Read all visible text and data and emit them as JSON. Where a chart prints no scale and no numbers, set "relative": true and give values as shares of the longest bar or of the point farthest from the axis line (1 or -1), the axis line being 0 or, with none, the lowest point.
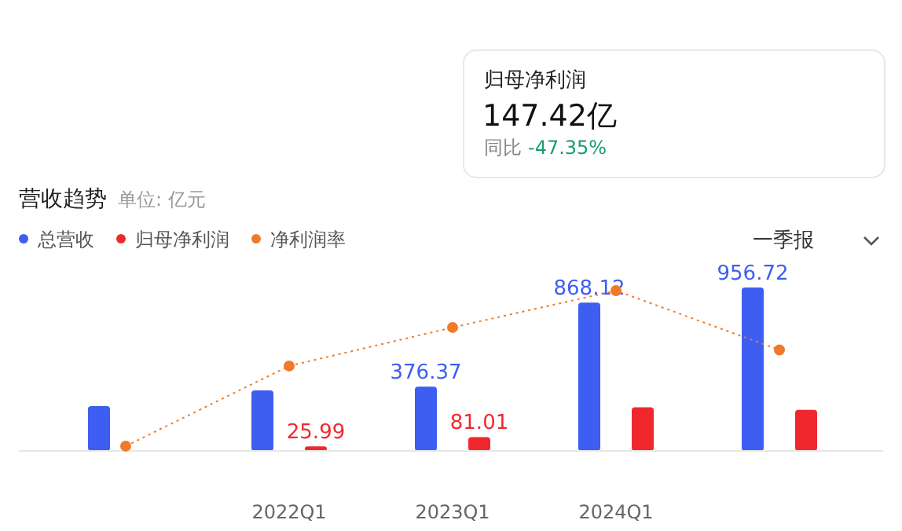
{
  "chart_data": [
    {
      "type": "other",
      "title": "归母净利润",
      "annotations": [
        "147.42亿",
        "同比",
        "-47.35%"
      ]
    },
    {
      "type": "bar",
      "title": "营收趋势",
      "subtitle": "单位: 亿元",
      "annotations": [
        "一季报"
      ],
      "categories": [
        null,
        "2022Q1",
        "2023Q1",
        "2024Q1",
        null
      ],
      "legend": "top left",
      "series": [
        {
          "name": "总营收",
          "color": "#3d5ef0",
          "values": [
            262,
            354,
            376.37,
            868.12,
            956.72
          ],
          "value_labels": [
            null,
            null,
            "376.37",
            "868.12",
            "956.72"
          ]
        },
        {
          "name": "归母净利润",
          "color": "#f0282d",
          "values": [
            null,
            25.99,
            81.01,
            255,
            240
          ],
          "value_labels": [
            null,
            "25.99",
            "81.01",
            null,
            null
          ]
        }
      ],
      "ylim": [
        0,
        956.72
      ]
    },
    {
      "type": "line",
      "relative": true,
      "categories": [
        null,
        null,
        null,
        null,
        null
      ],
      "legend": "top left",
      "marker": "circle",
      "line_style": "dotted",
      "series": [
        {
          "name": "净利润率",
          "color": "#f07a2a",
          "values": [
            0.03,
            0.53,
            0.77,
            1,
            0.63
          ]
        }
      ]
    }
  ]
}
